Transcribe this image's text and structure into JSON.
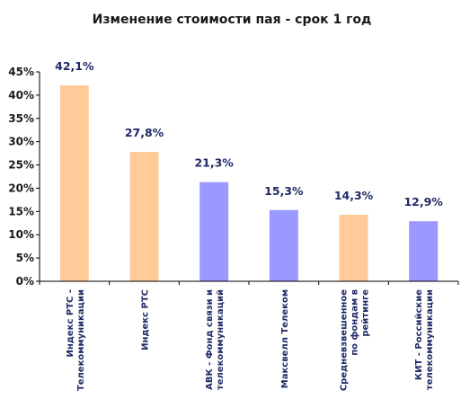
{
  "chart_data": {
    "type": "bar",
    "title": "Изменение стоимости пая - срок 1 год",
    "categories": [
      [
        "Индекс РТС -",
        "Телекоммуникации"
      ],
      [
        "Индекс РТС"
      ],
      [
        "АВК - Фонд связи и",
        "телекоммуникаций"
      ],
      [
        "Максвелл Телеком"
      ],
      [
        "Средневзвешенное",
        "по фондам в",
        "рейтинге"
      ],
      [
        "КИТ - Российские",
        "телекоммуникации"
      ]
    ],
    "values": [
      42.1,
      27.8,
      21.3,
      15.3,
      14.3,
      12.9
    ],
    "data_labels": [
      "42,1%",
      "27,8%",
      "21,3%",
      "15,3%",
      "14,3%",
      "12,9%"
    ],
    "bar_colors": [
      "#ffcc99",
      "#ffcc99",
      "#9999ff",
      "#9999ff",
      "#ffcc99",
      "#9999ff"
    ],
    "yticks": [
      "0%",
      "5%",
      "10%",
      "15%",
      "20%",
      "25%",
      "30%",
      "35%",
      "40%",
      "45%"
    ],
    "ylim": [
      0,
      45
    ],
    "xlabel": "",
    "ylabel": "",
    "grid": false,
    "legend": "none"
  }
}
